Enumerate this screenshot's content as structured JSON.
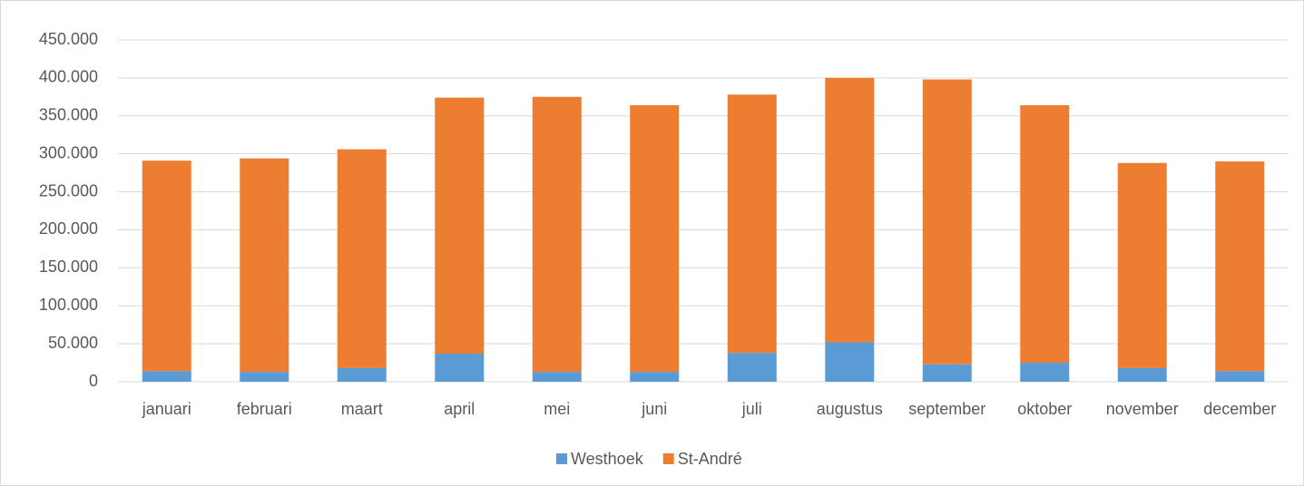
{
  "chart_data": {
    "type": "stacked_bar",
    "categories": [
      "januari",
      "februari",
      "maart",
      "april",
      "mei",
      "juni",
      "juli",
      "augustus",
      "september",
      "oktober",
      "november",
      "december"
    ],
    "series": [
      {
        "name": "Westhoek",
        "color": "#5b9bd5",
        "values": [
          14000,
          13000,
          18000,
          37000,
          13000,
          13000,
          38000,
          52000,
          23000,
          25000,
          18000,
          14000
        ]
      },
      {
        "name": "St-André",
        "color": "#ed7d31",
        "values": [
          277000,
          281000,
          288000,
          337000,
          362000,
          351000,
          340000,
          348000,
          375000,
          339000,
          270000,
          276000
        ]
      }
    ],
    "ylim": [
      0,
      450000
    ],
    "yticks": [
      0,
      {
        "value": 50000,
        "label": "50.000"
      },
      {
        "value": 100000,
        "label": "100.000"
      },
      {
        "value": 150000,
        "label": "150.000"
      },
      {
        "value": 200000,
        "label": "200.000"
      },
      {
        "value": 250000,
        "label": "250.000"
      },
      {
        "value": 300000,
        "label": "300.000"
      },
      {
        "value": 350000,
        "label": "350.000"
      },
      {
        "value": 400000,
        "label": "400.000"
      },
      {
        "value": 450000,
        "label": "450.000"
      }
    ],
    "grid": true,
    "legend": "bottom"
  }
}
